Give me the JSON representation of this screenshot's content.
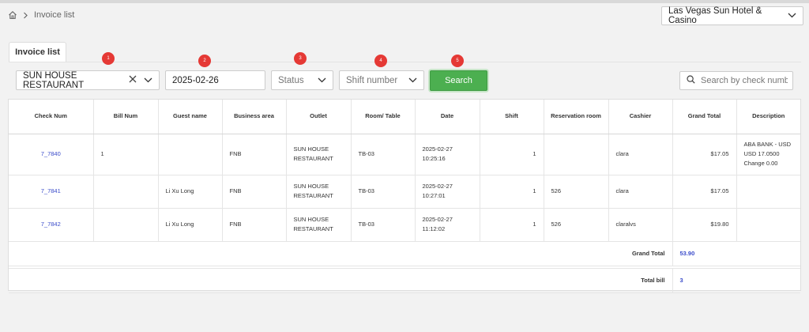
{
  "breadcrumb": {
    "current": "Invoice list"
  },
  "hotel": {
    "selected": "Las Vegas Sun Hotel & Casino"
  },
  "tab": {
    "label": "Invoice list"
  },
  "markers": [
    "1",
    "2",
    "3",
    "4",
    "5"
  ],
  "filters": {
    "outlet": "SUN HOUSE RESTAURANT",
    "date": "2025-02-26",
    "status_placeholder": "Status",
    "shift_placeholder": "Shift number",
    "search_label": "Search",
    "check_search_placeholder": "Search by check numb"
  },
  "table": {
    "columns": [
      "Check Num",
      "Bill Num",
      "Guest name",
      "Business area",
      "Outlet",
      "Room/ Table",
      "Date",
      "Shift",
      "Reservation room",
      "Cashier",
      "Grand Total",
      "Description"
    ],
    "rows": [
      {
        "check_num": "7_7840",
        "bill_num": "1",
        "guest": "",
        "area": "FNB",
        "outlet": "SUN HOUSE RESTAURANT",
        "table": "TB-03",
        "date": "2025-02-27",
        "time": "10:25:16",
        "shift": "1",
        "reservation": "",
        "cashier": "clara",
        "grand_total": "$17.05",
        "desc_1": "ABA BANK - USD",
        "desc_2": "USD 17.0500",
        "desc_3": "Change 0.00"
      },
      {
        "check_num": "7_7841",
        "bill_num": "",
        "guest": "Li Xu Long",
        "area": "FNB",
        "outlet": "SUN HOUSE RESTAURANT",
        "table": "TB-03",
        "date": "2025-02-27",
        "time": "10:27:01",
        "shift": "1",
        "reservation": "526",
        "cashier": "clara",
        "grand_total": "$17.05",
        "desc_1": "",
        "desc_2": "",
        "desc_3": ""
      },
      {
        "check_num": "7_7842",
        "bill_num": "",
        "guest": "Li Xu Long",
        "area": "FNB",
        "outlet": "SUN HOUSE RESTAURANT",
        "table": "TB-03",
        "date": "2025-02-27",
        "time": "11:12:02",
        "shift": "1",
        "reservation": "526",
        "cashier": "claralvs",
        "grand_total": "$19.80",
        "desc_1": "",
        "desc_2": "",
        "desc_3": ""
      }
    ],
    "summary": {
      "grand_total_label": "Grand Total",
      "grand_total_value": "53.90",
      "total_bill_label": "Total bill",
      "total_bill_value": "3"
    }
  }
}
